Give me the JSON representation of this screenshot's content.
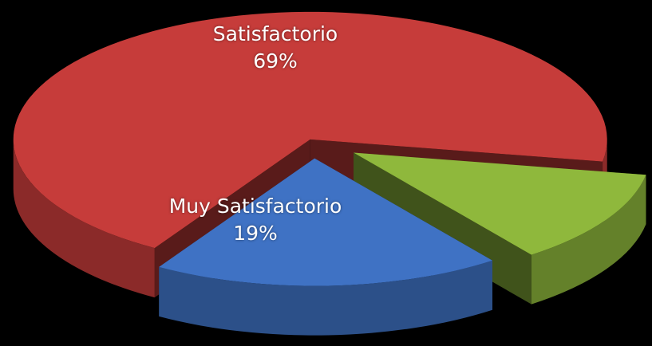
{
  "chart_data": {
    "type": "pie",
    "categories": [
      "Satisfactorio",
      "Muy Satisfactorio",
      null
    ],
    "values": [
      69,
      19,
      12
    ],
    "value_labels": [
      "69%",
      "19%",
      null
    ],
    "colors": [
      "#c63c3a",
      "#3f72c4",
      "#8fb83c"
    ]
  }
}
